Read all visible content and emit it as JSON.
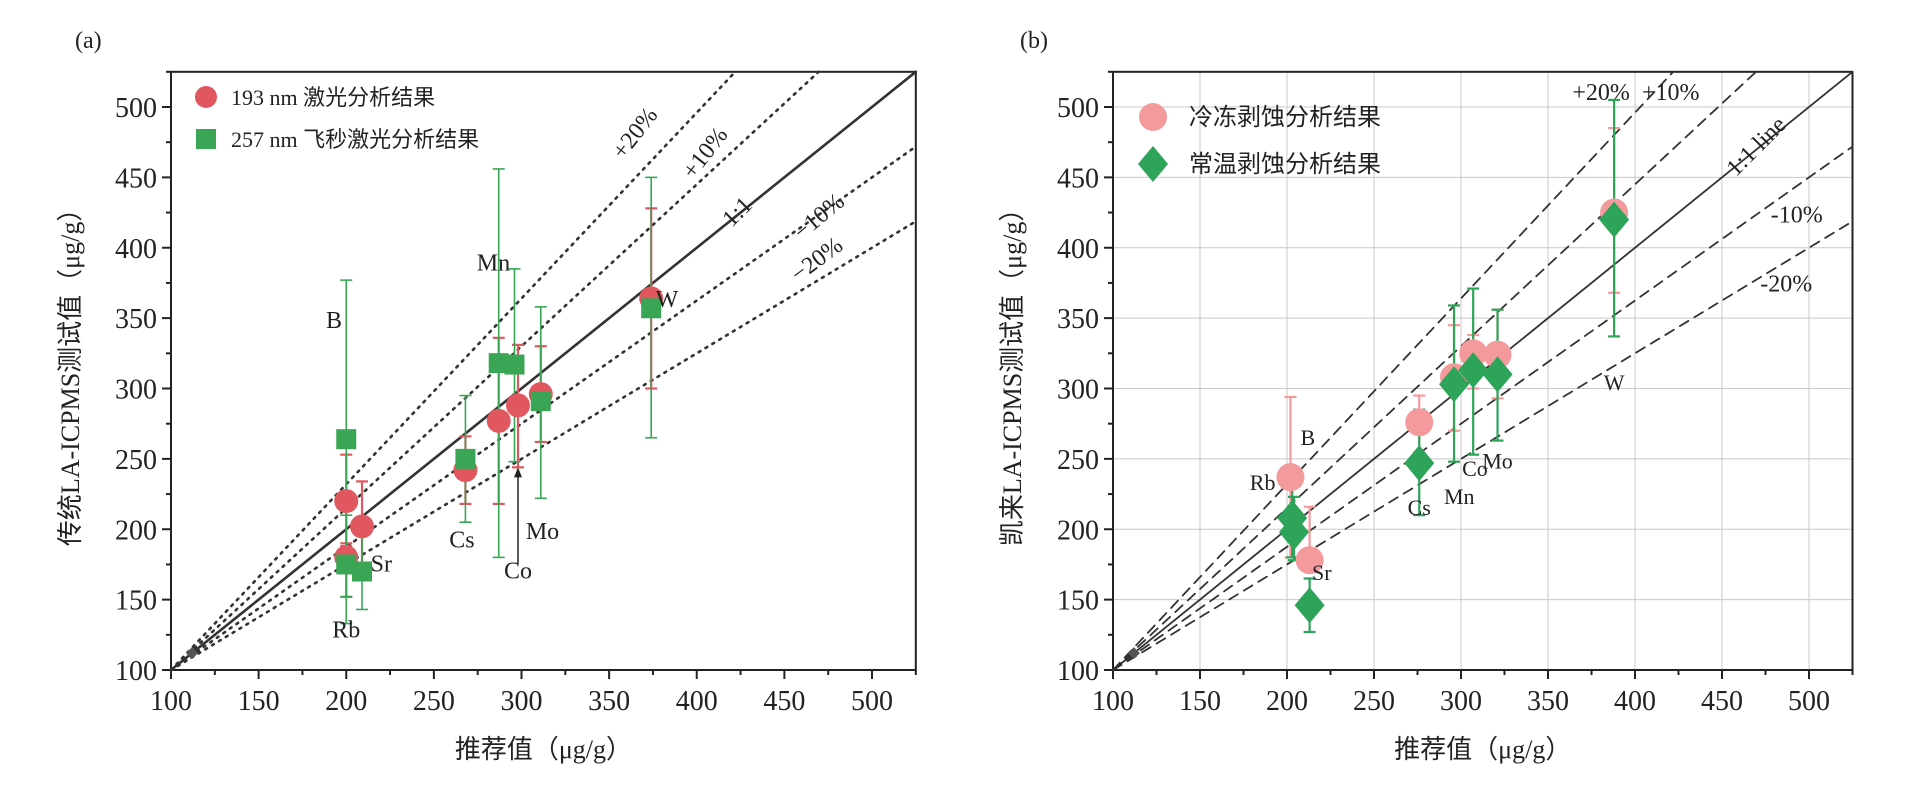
{
  "chart_data": [
    {
      "type": "scatter",
      "panel_label": "(a)",
      "xlabel": "推荐值（μg/g）",
      "ylabel": "传统LA-ICPMS测试值（μg/g）",
      "xlim": [
        100,
        525
      ],
      "ylim": [
        100,
        525
      ],
      "xticks": [
        "100",
        "150",
        "200",
        "250",
        "300",
        "350",
        "400",
        "450",
        "500"
      ],
      "yticks": [
        "100",
        "150",
        "200",
        "250",
        "300",
        "350",
        "400",
        "450",
        "500"
      ],
      "grid": false,
      "legend_position": "top-left",
      "reference_lines": [
        {
          "label": "+20%",
          "slope": 1.32
        },
        {
          "label": "+10%",
          "slope": 1.15
        },
        {
          "label": "1:1",
          "slope": 1.0
        },
        {
          "label": "−10%",
          "slope": 0.875
        },
        {
          "label": "−20%",
          "slope": 0.75
        }
      ],
      "reference_style": "dotted",
      "series": [
        {
          "name": "193 nm 激光分析结果",
          "marker": "circle",
          "color": "#e0575f",
          "points": [
            {
              "element": "B",
              "x": 200,
              "y": 220,
              "ymin": 188,
              "ymax": 253
            },
            {
              "element": "Rb",
              "x": 200,
              "y": 180,
              "ymin": 152,
              "ymax": 190
            },
            {
              "element": "Sr",
              "x": 209,
              "y": 202,
              "ymin": 170,
              "ymax": 234
            },
            {
              "element": "Cs",
              "x": 268,
              "y": 242,
              "ymin": 218,
              "ymax": 266
            },
            {
              "element": "Mn",
              "x": 287,
              "y": 277,
              "ymin": 218,
              "ymax": 336
            },
            {
              "element": "Co",
              "x": 298,
              "y": 288,
              "ymin": 244,
              "ymax": 331
            },
            {
              "element": "Mo",
              "x": 311,
              "y": 296,
              "ymin": 262,
              "ymax": 330
            },
            {
              "element": "W",
              "x": 374,
              "y": 364,
              "ymin": 300,
              "ymax": 428
            }
          ]
        },
        {
          "name": "257 nm 飞秒激光分析结果",
          "marker": "square",
          "color": "#3aa655",
          "points": [
            {
              "element": "B",
              "x": 200,
              "y": 264,
              "ymin": 152,
              "ymax": 377
            },
            {
              "element": "Rb",
              "x": 200,
              "y": 175,
              "ymin": 133,
              "ymax": 210
            },
            {
              "element": "Sr",
              "x": 209,
              "y": 170,
              "ymin": 143,
              "ymax": 200
            },
            {
              "element": "Cs",
              "x": 268,
              "y": 250,
              "ymin": 205,
              "ymax": 295
            },
            {
              "element": "Mn",
              "x": 287,
              "y": 318,
              "ymin": 180,
              "ymax": 456
            },
            {
              "element": "Co",
              "x": 296,
              "y": 317,
              "ymin": 248,
              "ymax": 385
            },
            {
              "element": "Mo",
              "x": 311,
              "y": 291,
              "ymin": 222,
              "ymax": 358
            },
            {
              "element": "W",
              "x": 374,
              "y": 357,
              "ymin": 265,
              "ymax": 450
            }
          ]
        }
      ],
      "annotations": [
        "B",
        "Rb",
        "Sr",
        "Cs",
        "Mn",
        "Co",
        "Mo",
        "W"
      ]
    },
    {
      "type": "scatter",
      "panel_label": "(b)",
      "xlabel": "推荐值（μg/g）",
      "ylabel": "凯来LA-ICPMS测试值（μg/g）",
      "xlim": [
        100,
        525
      ],
      "ylim": [
        100,
        525
      ],
      "xticks": [
        "100",
        "150",
        "200",
        "250",
        "300",
        "350",
        "400",
        "450",
        "500"
      ],
      "yticks": [
        "100",
        "150",
        "200",
        "250",
        "300",
        "350",
        "400",
        "450",
        "500"
      ],
      "grid": true,
      "legend_position": "top-left",
      "reference_lines": [
        {
          "label": "+20%",
          "slope": 1.32
        },
        {
          "label": "+10%",
          "slope": 1.15
        },
        {
          "label": "1:1 line",
          "slope": 1.0
        },
        {
          "label": "-10%",
          "slope": 0.875
        },
        {
          "label": "-20%",
          "slope": 0.75
        }
      ],
      "reference_style": "dashed",
      "series": [
        {
          "name": "冷冻剥蚀分析结果",
          "marker": "circle",
          "color": "#f59a9c",
          "points": [
            {
              "element": "B",
              "x": 202,
              "y": 237,
              "ymin": 180,
              "ymax": 294
            },
            {
              "element": "Sr",
              "x": 213,
              "y": 178,
              "ymin": 174,
              "ymax": 216
            },
            {
              "element": "Cs",
              "x": 276,
              "y": 276,
              "ymin": 255,
              "ymax": 295
            },
            {
              "element": "Mn",
              "x": 296,
              "y": 308,
              "ymin": 270,
              "ymax": 345
            },
            {
              "element": "Co",
              "x": 307,
              "y": 325,
              "ymin": 300,
              "ymax": 338
            },
            {
              "element": "Mo",
              "x": 321,
              "y": 324,
              "ymin": 293,
              "ymax": 356
            },
            {
              "element": "W",
              "x": 388,
              "y": 425,
              "ymin": 368,
              "ymax": 485
            }
          ]
        },
        {
          "name": "常温剥蚀分析结果",
          "marker": "diamond",
          "color": "#2ea35a",
          "points": [
            {
              "element": "Rb",
              "x": 203,
              "y": 208,
              "ymin": 180,
              "ymax": 235
            },
            {
              "element": "B",
              "x": 204,
              "y": 198,
              "ymin": 178,
              "ymax": 223
            },
            {
              "element": "Sr",
              "x": 213,
              "y": 146,
              "ymin": 127,
              "ymax": 165
            },
            {
              "element": "Cs",
              "x": 276,
              "y": 247,
              "ymin": 210,
              "ymax": 285
            },
            {
              "element": "Mn",
              "x": 296,
              "y": 303,
              "ymin": 248,
              "ymax": 359
            },
            {
              "element": "Co",
              "x": 307,
              "y": 313,
              "ymin": 253,
              "ymax": 371
            },
            {
              "element": "Mo",
              "x": 321,
              "y": 310,
              "ymin": 263,
              "ymax": 356
            },
            {
              "element": "W",
              "x": 388,
              "y": 420,
              "ymin": 337,
              "ymax": 505
            }
          ]
        }
      ],
      "annotations": [
        "B",
        "Rb",
        "Sr",
        "Cs",
        "Mn",
        "Co",
        "Mo",
        "W"
      ]
    }
  ]
}
